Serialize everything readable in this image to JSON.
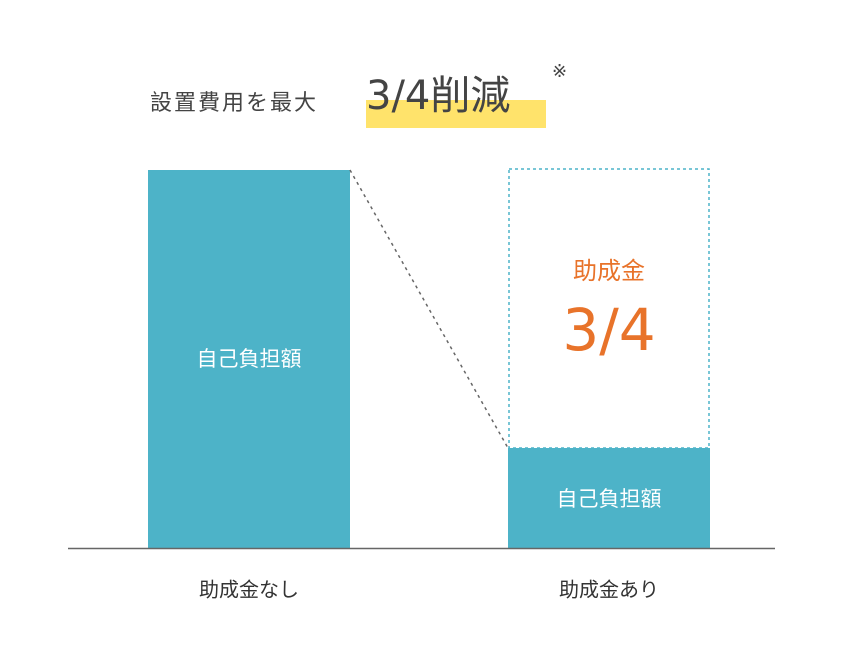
{
  "header": {
    "lead": "設置費用を最大",
    "highlight": "3/4削減",
    "note_mark": "※"
  },
  "bars": [
    {
      "segment_label": "自己負担額",
      "category": "助成金なし"
    },
    {
      "segment_label": "自己負担額",
      "subsidy_label": "助成金",
      "subsidy_ratio": "3/4",
      "category": "助成金あり"
    }
  ]
}
